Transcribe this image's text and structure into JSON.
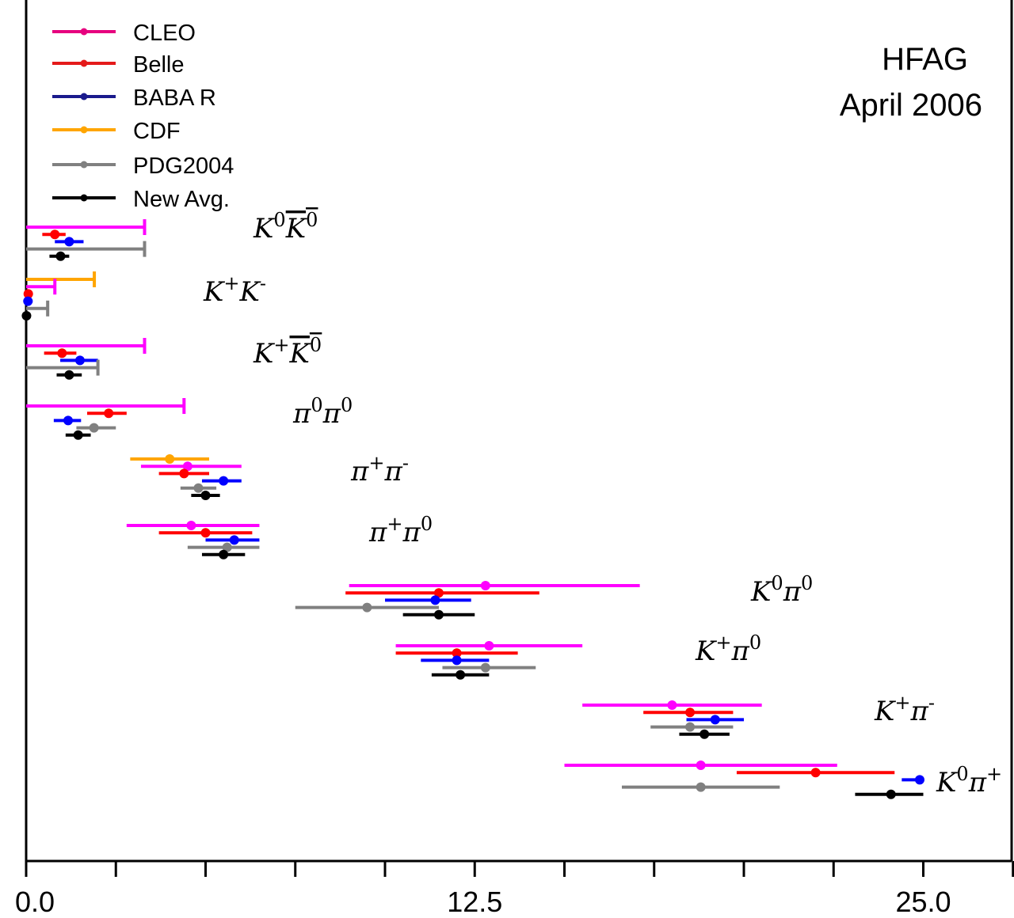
{
  "chart_data": {
    "type": "scatter",
    "subtitle_lines": [
      "HFAG",
      "April 2006"
    ],
    "xlabel": "",
    "ylabel": "",
    "xlim": [
      0,
      27.5
    ],
    "x_ticks": [
      0,
      2.5,
      5,
      7.5,
      10,
      12.5,
      15,
      17.5,
      20,
      22.5,
      25,
      27.5
    ],
    "x_tick_labels": [
      {
        "value": 0,
        "label": "0.0"
      },
      {
        "value": 12.5,
        "label": "12.5"
      },
      {
        "value": 25,
        "label": "25.0"
      }
    ],
    "grid": false,
    "legend_position": "top-left",
    "series": [
      {
        "name": "CLEO",
        "color": "#ff00ff",
        "legend_color": "#e6007e"
      },
      {
        "name": "Belle",
        "color": "#ff0000",
        "legend_color": "#e41a1a"
      },
      {
        "name": "BABA R",
        "color": "#0000ff",
        "legend_color": "#1a1a8c"
      },
      {
        "name": "CDF",
        "color": "#ffa500",
        "legend_color": "#ffa500"
      },
      {
        "name": "PDG2004",
        "color": "#808080",
        "legend_color": "#808080"
      },
      {
        "name": "New Avg.",
        "color": "#000000",
        "legend_color": "#000000"
      }
    ],
    "groups": [
      {
        "label": "K^0 bar(K^0)",
        "measurements": [
          {
            "series": "CLEO",
            "type": "limit",
            "value": 3.3
          },
          {
            "series": "Belle",
            "value": 0.8,
            "low": 0.45,
            "high": 1.1
          },
          {
            "series": "BABA R",
            "value": 1.2,
            "low": 0.8,
            "high": 1.6
          },
          {
            "series": "PDG2004",
            "type": "limit",
            "value": 3.3
          },
          {
            "series": "New Avg.",
            "value": 0.96,
            "low": 0.65,
            "high": 1.2
          }
        ]
      },
      {
        "label": "K^+ K^-",
        "measurements": [
          {
            "series": "CDF",
            "type": "limit",
            "value": 1.9
          },
          {
            "series": "CLEO",
            "type": "limit",
            "value": 0.8
          },
          {
            "series": "Belle",
            "value": 0.06,
            "low": 0.0,
            "high": 0.15
          },
          {
            "series": "BABA R",
            "value": 0.05,
            "low": 0.0,
            "high": 0.18
          },
          {
            "series": "PDG2004",
            "type": "limit",
            "value": 0.6
          },
          {
            "series": "New Avg.",
            "value": 0.01,
            "low": 0.0,
            "high": 0.04
          }
        ]
      },
      {
        "label": "K^+ bar(K^0)",
        "measurements": [
          {
            "series": "CLEO",
            "type": "limit",
            "value": 3.3
          },
          {
            "series": "Belle",
            "value": 1.0,
            "low": 0.5,
            "high": 1.4
          },
          {
            "series": "BABA R",
            "value": 1.5,
            "low": 0.95,
            "high": 2.0
          },
          {
            "series": "PDG2004",
            "type": "limit",
            "value": 2.0
          },
          {
            "series": "New Avg.",
            "value": 1.2,
            "low": 0.85,
            "high": 1.55
          }
        ]
      },
      {
        "label": "π^0 π^0",
        "measurements": [
          {
            "series": "CLEO",
            "type": "limit",
            "value": 4.4
          },
          {
            "series": "Belle",
            "value": 2.3,
            "low": 1.7,
            "high": 2.8
          },
          {
            "series": "BABA R",
            "value": 1.17,
            "low": 0.77,
            "high": 1.53
          },
          {
            "series": "PDG2004",
            "value": 1.89,
            "low": 1.4,
            "high": 2.5
          },
          {
            "series": "New Avg.",
            "value": 1.45,
            "low": 1.1,
            "high": 1.8
          }
        ]
      },
      {
        "label": "π^+ π^-",
        "measurements": [
          {
            "series": "CDF",
            "value": 4.0,
            "low": 2.9,
            "high": 5.1
          },
          {
            "series": "CLEO",
            "value": 4.5,
            "low": 3.2,
            "high": 6.0
          },
          {
            "series": "Belle",
            "value": 4.4,
            "low": 3.7,
            "high": 5.1
          },
          {
            "series": "BABA R",
            "value": 5.5,
            "low": 4.9,
            "high": 6.0
          },
          {
            "series": "PDG2004",
            "value": 4.8,
            "low": 4.3,
            "high": 5.3
          },
          {
            "series": "New Avg.",
            "value": 5.0,
            "low": 4.6,
            "high": 5.4
          }
        ]
      },
      {
        "label": "π^+ π^0",
        "measurements": [
          {
            "series": "CLEO",
            "value": 4.6,
            "low": 2.8,
            "high": 6.5
          },
          {
            "series": "Belle",
            "value": 5.0,
            "low": 3.7,
            "high": 6.3
          },
          {
            "series": "BABA R",
            "value": 5.8,
            "low": 5.0,
            "high": 6.5
          },
          {
            "series": "PDG2004",
            "value": 5.6,
            "low": 4.5,
            "high": 6.5
          },
          {
            "series": "New Avg.",
            "value": 5.5,
            "low": 4.9,
            "high": 6.1
          }
        ]
      },
      {
        "label": "K^0 π^0",
        "measurements": [
          {
            "series": "CLEO",
            "value": 12.8,
            "low": 9.0,
            "high": 17.1
          },
          {
            "series": "Belle",
            "value": 11.5,
            "low": 8.9,
            "high": 14.3
          },
          {
            "series": "BABA R",
            "value": 11.4,
            "low": 10.0,
            "high": 12.4
          },
          {
            "series": "PDG2004",
            "value": 9.5,
            "low": 7.5,
            "high": 11.5
          },
          {
            "series": "New Avg.",
            "value": 11.5,
            "low": 10.5,
            "high": 12.5
          }
        ]
      },
      {
        "label": "K^+ π^0",
        "measurements": [
          {
            "series": "CLEO",
            "value": 12.9,
            "low": 10.3,
            "high": 15.5
          },
          {
            "series": "Belle",
            "value": 12.0,
            "low": 10.3,
            "high": 13.7
          },
          {
            "series": "BABA R",
            "value": 12.0,
            "low": 11.0,
            "high": 12.9
          },
          {
            "series": "PDG2004",
            "value": 12.8,
            "low": 11.6,
            "high": 14.2
          },
          {
            "series": "New Avg.",
            "value": 12.1,
            "low": 11.3,
            "high": 12.9
          }
        ]
      },
      {
        "label": "K^+ π^-",
        "measurements": [
          {
            "series": "CLEO",
            "value": 18.0,
            "low": 15.5,
            "high": 20.5
          },
          {
            "series": "Belle",
            "value": 18.5,
            "low": 17.2,
            "high": 19.7
          },
          {
            "series": "BABA R",
            "value": 19.2,
            "low": 18.4,
            "high": 20.0
          },
          {
            "series": "PDG2004",
            "value": 18.5,
            "low": 17.4,
            "high": 19.7
          },
          {
            "series": "New Avg.",
            "value": 18.9,
            "low": 18.2,
            "high": 19.6
          }
        ]
      },
      {
        "label": "K^0 π^+",
        "measurements": [
          {
            "series": "CLEO",
            "value": 18.8,
            "low": 15.0,
            "high": 22.6
          },
          {
            "series": "Belle",
            "value": 22.0,
            "low": 19.8,
            "high": 24.2
          },
          {
            "series": "BABA R",
            "value": 24.9,
            "low": 24.4,
            "high": 25.0
          },
          {
            "series": "PDG2004",
            "value": 18.8,
            "low": 16.6,
            "high": 21.0
          },
          {
            "series": "New Avg.",
            "value": 24.1,
            "low": 23.1,
            "high": 25.0
          }
        ]
      }
    ]
  }
}
